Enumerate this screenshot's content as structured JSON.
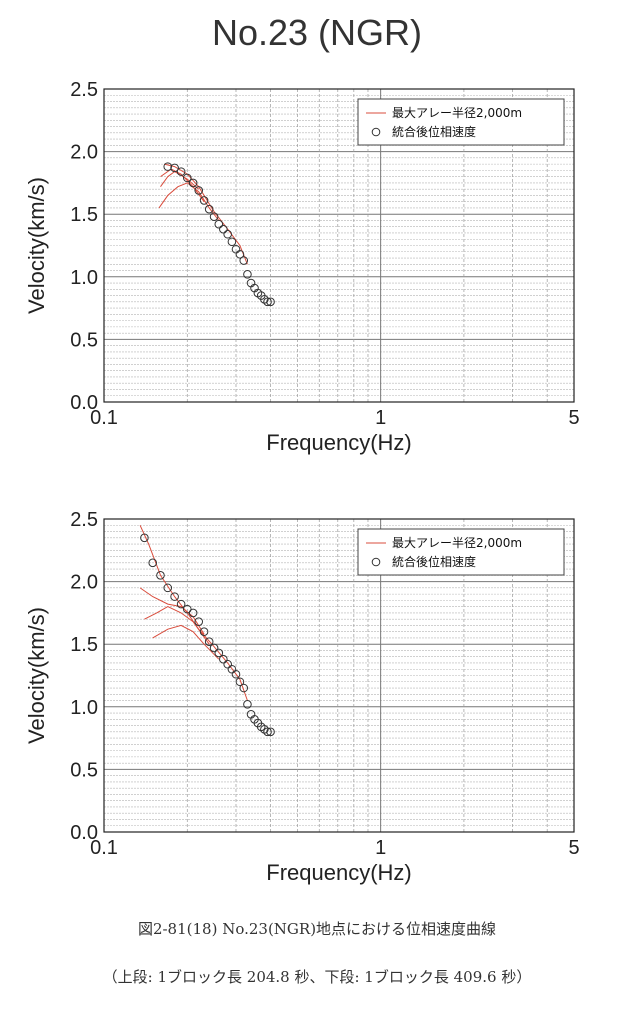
{
  "title": "No.23 (NGR)",
  "caption_line1": "図2-81(18) No.23(NGR)地点における位相速度曲線",
  "caption_line2": "（上段: 1ブロック長 204.8 秒、下段: 1ブロック長 409.6 秒）",
  "chart_data": [
    {
      "type": "scatter",
      "xlabel": "Frequency(Hz)",
      "ylabel": "Velocity(km/s)",
      "xscale": "log",
      "xlim": [
        0.1,
        5
      ],
      "ylim": [
        0,
        2.5
      ],
      "xticks": [
        "0.1",
        "1",
        "5"
      ],
      "yticks": [
        "0.0",
        "0.5",
        "1.0",
        "1.5",
        "2.0",
        "2.5"
      ],
      "grid": true,
      "legend_position": "top-right",
      "series": [
        {
          "name": "最大アレー半径2,000m",
          "style": "line",
          "color": "#d94c3c",
          "lines": [
            {
              "x": [
                0.158,
                0.17,
                0.185,
                0.2,
                0.22,
                0.24,
                0.26
              ],
              "y": [
                1.55,
                1.65,
                1.72,
                1.75,
                1.68,
                1.55,
                1.45
              ]
            },
            {
              "x": [
                0.16,
                0.175,
                0.19,
                0.21,
                0.23
              ],
              "y": [
                1.8,
                1.86,
                1.82,
                1.72,
                1.6
              ]
            },
            {
              "x": [
                0.16,
                0.17,
                0.18,
                0.2,
                0.22
              ],
              "y": [
                1.72,
                1.8,
                1.84,
                1.78,
                1.7
              ]
            },
            {
              "x": [
                0.165,
                0.18,
                0.2,
                0.22,
                0.25,
                0.28,
                0.31,
                0.33
              ],
              "y": [
                1.9,
                1.88,
                1.82,
                1.72,
                1.52,
                1.38,
                1.25,
                1.1
              ]
            }
          ]
        },
        {
          "name": "統合後位相速度",
          "style": "open-circle",
          "color": "#333333",
          "x": [
            0.17,
            0.18,
            0.19,
            0.2,
            0.21,
            0.22,
            0.23,
            0.24,
            0.25,
            0.26,
            0.27,
            0.28,
            0.29,
            0.3,
            0.31,
            0.32,
            0.33,
            0.34,
            0.35,
            0.36,
            0.37,
            0.38,
            0.39,
            0.4
          ],
          "y": [
            1.88,
            1.87,
            1.84,
            1.79,
            1.75,
            1.69,
            1.61,
            1.54,
            1.48,
            1.42,
            1.38,
            1.34,
            1.28,
            1.22,
            1.18,
            1.13,
            1.02,
            0.95,
            0.91,
            0.87,
            0.85,
            0.82,
            0.8,
            0.8
          ]
        }
      ]
    },
    {
      "type": "scatter",
      "xlabel": "Frequency(Hz)",
      "ylabel": "Velocity(km/s)",
      "xscale": "log",
      "xlim": [
        0.1,
        5
      ],
      "ylim": [
        0,
        2.5
      ],
      "xticks": [
        "0.1",
        "1",
        "5"
      ],
      "yticks": [
        "0.0",
        "0.5",
        "1.0",
        "1.5",
        "2.0",
        "2.5"
      ],
      "grid": true,
      "legend_position": "top-right",
      "series": [
        {
          "name": "最大アレー半径2,000m",
          "style": "line",
          "color": "#d94c3c",
          "lines": [
            {
              "x": [
                0.135,
                0.145,
                0.16,
                0.18,
                0.2,
                0.22,
                0.25,
                0.28,
                0.31,
                0.33
              ],
              "y": [
                2.45,
                2.3,
                2.05,
                1.88,
                1.75,
                1.62,
                1.48,
                1.35,
                1.22,
                1.05
              ]
            },
            {
              "x": [
                0.135,
                0.15,
                0.17,
                0.19,
                0.21,
                0.23
              ],
              "y": [
                1.95,
                1.88,
                1.82,
                1.8,
                1.72,
                1.58
              ]
            },
            {
              "x": [
                0.14,
                0.155,
                0.17,
                0.19,
                0.21,
                0.24
              ],
              "y": [
                1.7,
                1.75,
                1.8,
                1.75,
                1.68,
                1.5
              ]
            },
            {
              "x": [
                0.15,
                0.17,
                0.19,
                0.21,
                0.23,
                0.26
              ],
              "y": [
                1.55,
                1.62,
                1.65,
                1.6,
                1.5,
                1.38
              ]
            }
          ]
        },
        {
          "name": "統合後位相速度",
          "style": "open-circle",
          "color": "#333333",
          "x": [
            0.14,
            0.15,
            0.16,
            0.17,
            0.18,
            0.19,
            0.2,
            0.21,
            0.22,
            0.23,
            0.24,
            0.25,
            0.26,
            0.27,
            0.28,
            0.29,
            0.3,
            0.31,
            0.32,
            0.33,
            0.34,
            0.35,
            0.36,
            0.37,
            0.38,
            0.39,
            0.4
          ],
          "y": [
            2.35,
            2.15,
            2.05,
            1.95,
            1.88,
            1.82,
            1.78,
            1.75,
            1.68,
            1.6,
            1.52,
            1.47,
            1.43,
            1.38,
            1.34,
            1.3,
            1.26,
            1.2,
            1.15,
            1.02,
            0.94,
            0.9,
            0.87,
            0.84,
            0.82,
            0.8,
            0.8
          ]
        }
      ]
    }
  ]
}
